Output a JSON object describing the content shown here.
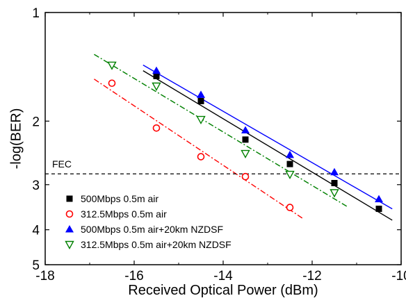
{
  "chart_data": {
    "type": "scatter",
    "title": "",
    "xlabel": "Received Optical Power (dBm)",
    "ylabel": "-log(BER)",
    "xlim": [
      -18,
      -10
    ],
    "ylim": [
      1,
      5
    ],
    "y_scale": "log",
    "x_ticks": [
      -18,
      -16,
      -14,
      -12,
      -10
    ],
    "y_ticks": [
      1,
      2,
      3,
      4,
      5
    ],
    "grid": false,
    "legend_position": "bottom-left",
    "threshold": {
      "label": "FEC",
      "y": 2.8,
      "style": "dashed",
      "color": "#000000"
    },
    "series": [
      {
        "name": "500Mbps 0.5m air",
        "marker": "square-filled",
        "color": "#000000",
        "fit_style": "solid",
        "fit_x": [
          -15.8,
          -10.2
        ],
        "x": [
          -15.5,
          -14.5,
          -13.5,
          -12.5,
          -11.5,
          -10.5
        ],
        "y": [
          1.5,
          1.76,
          2.25,
          2.63,
          2.97,
          3.5
        ]
      },
      {
        "name": "312.5Mbps 0.5m air",
        "marker": "circle-open",
        "color": "#ff0000",
        "fit_style": "dashdot",
        "fit_x": [
          -16.9,
          -12.2
        ],
        "x": [
          -16.5,
          -15.5,
          -14.5,
          -13.5,
          -12.5
        ],
        "y": [
          1.57,
          2.09,
          2.51,
          2.85,
          3.47
        ]
      },
      {
        "name": "500Mbps 0.5m air+20km NZDSF",
        "marker": "triangle-up-filled",
        "color": "#0000ff",
        "fit_style": "solid",
        "fit_x": [
          -15.8,
          -10.2
        ],
        "x": [
          -15.5,
          -14.5,
          -13.5,
          -12.5,
          -11.5,
          -10.5
        ],
        "y": [
          1.45,
          1.69,
          2.12,
          2.48,
          2.77,
          3.29
        ]
      },
      {
        "name": "312.5Mbps 0.5m air+20km NZDSF",
        "marker": "triangle-down-open",
        "color": "#008000",
        "fit_style": "dashdot",
        "fit_x": [
          -16.9,
          -11.2
        ],
        "x": [
          -16.5,
          -15.5,
          -14.5,
          -13.5,
          -12.5,
          -11.5
        ],
        "y": [
          1.4,
          1.6,
          1.98,
          2.46,
          2.81,
          3.16
        ]
      }
    ]
  }
}
